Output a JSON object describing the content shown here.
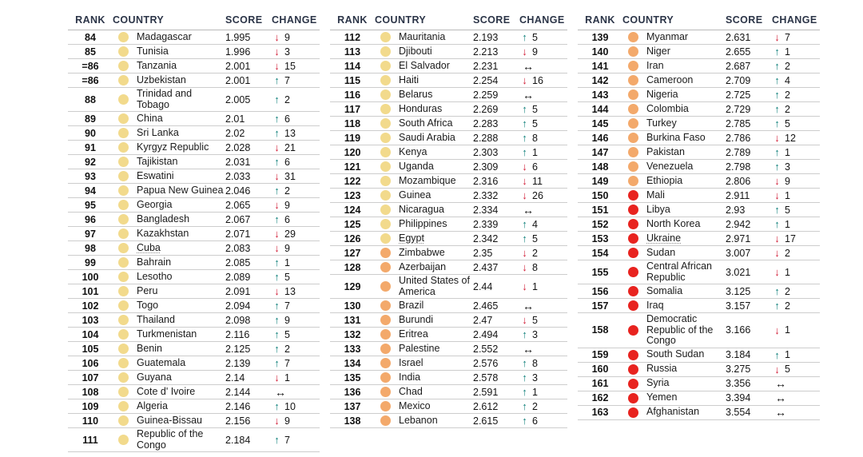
{
  "header": {
    "rank": "RANK",
    "country": "COUNTRY",
    "score": "SCORE",
    "change": "CHANGE"
  },
  "colors": {
    "tier_yellow": "#f2da8c",
    "tier_orange": "#f3a96b",
    "tier_red": "#e8231f",
    "arrow_up": "#15837e",
    "arrow_down": "#d2213a",
    "arrow_same": "#101010",
    "header_text": "#2b3447",
    "row_line": "#cdcdcd"
  },
  "glyphs": {
    "up": "↑",
    "down": "↓",
    "same": "↔"
  },
  "tables": [
    {
      "rows": [
        {
          "rank": "84",
          "country": "Madagascar",
          "tier": "yellow",
          "score": "1.995",
          "dir": "down",
          "delta": "9"
        },
        {
          "rank": "85",
          "country": "Tunisia",
          "tier": "yellow",
          "score": "1.996",
          "dir": "down",
          "delta": "3"
        },
        {
          "rank": "=86",
          "country": "Tanzania",
          "tier": "yellow",
          "score": "2.001",
          "dir": "down",
          "delta": "15"
        },
        {
          "rank": "=86",
          "country": "Uzbekistan",
          "tier": "yellow",
          "score": "2.001",
          "dir": "up",
          "delta": "7"
        },
        {
          "rank": "88",
          "country": "Trinidad and Tobago",
          "tier": "yellow",
          "score": "2.005",
          "dir": "up",
          "delta": "2"
        },
        {
          "rank": "89",
          "country": "China",
          "tier": "yellow",
          "score": "2.01",
          "dir": "up",
          "delta": "6"
        },
        {
          "rank": "90",
          "country": "Sri Lanka",
          "tier": "yellow",
          "score": "2.02",
          "dir": "up",
          "delta": "13"
        },
        {
          "rank": "91",
          "country": "Kyrgyz Republic",
          "tier": "yellow",
          "score": "2.028",
          "dir": "down",
          "delta": "21"
        },
        {
          "rank": "92",
          "country": "Tajikistan",
          "tier": "yellow",
          "score": "2.031",
          "dir": "up",
          "delta": "6"
        },
        {
          "rank": "93",
          "country": "Eswatini",
          "tier": "yellow",
          "score": "2.033",
          "dir": "down",
          "delta": "31"
        },
        {
          "rank": "94",
          "country": "Papua New Guinea",
          "tier": "yellow",
          "score": "2.046",
          "dir": "up",
          "delta": "2"
        },
        {
          "rank": "95",
          "country": "Georgia",
          "tier": "yellow",
          "score": "2.065",
          "dir": "down",
          "delta": "9"
        },
        {
          "rank": "96",
          "country": "Bangladesh",
          "tier": "yellow",
          "score": "2.067",
          "dir": "up",
          "delta": "6"
        },
        {
          "rank": "97",
          "country": "Kazakhstan",
          "tier": "yellow",
          "score": "2.071",
          "dir": "down",
          "delta": "29"
        },
        {
          "rank": "98",
          "country": "Cuba",
          "tier": "yellow",
          "score": "2.083",
          "dir": "down",
          "delta": "9",
          "underline": true
        },
        {
          "rank": "99",
          "country": "Bahrain",
          "tier": "yellow",
          "score": "2.085",
          "dir": "up",
          "delta": "1"
        },
        {
          "rank": "100",
          "country": "Lesotho",
          "tier": "yellow",
          "score": "2.089",
          "dir": "up",
          "delta": "5"
        },
        {
          "rank": "101",
          "country": "Peru",
          "tier": "yellow",
          "score": "2.091",
          "dir": "down",
          "delta": "13"
        },
        {
          "rank": "102",
          "country": "Togo",
          "tier": "yellow",
          "score": "2.094",
          "dir": "up",
          "delta": "7"
        },
        {
          "rank": "103",
          "country": "Thailand",
          "tier": "yellow",
          "score": "2.098",
          "dir": "up",
          "delta": "9"
        },
        {
          "rank": "104",
          "country": "Turkmenistan",
          "tier": "yellow",
          "score": "2.116",
          "dir": "up",
          "delta": "5"
        },
        {
          "rank": "105",
          "country": "Benin",
          "tier": "yellow",
          "score": "2.125",
          "dir": "up",
          "delta": "2"
        },
        {
          "rank": "106",
          "country": "Guatemala",
          "tier": "yellow",
          "score": "2.139",
          "dir": "up",
          "delta": "7"
        },
        {
          "rank": "107",
          "country": "Guyana",
          "tier": "yellow",
          "score": "2.14",
          "dir": "down",
          "delta": "1"
        },
        {
          "rank": "108",
          "country": "Cote d' Ivoire",
          "tier": "yellow",
          "score": "2.144",
          "dir": "same",
          "delta": ""
        },
        {
          "rank": "109",
          "country": "Algeria",
          "tier": "yellow",
          "score": "2.146",
          "dir": "up",
          "delta": "10"
        },
        {
          "rank": "110",
          "country": "Guinea-Bissau",
          "tier": "yellow",
          "score": "2.156",
          "dir": "down",
          "delta": "9"
        },
        {
          "rank": "111",
          "country": "Republic of the Congo",
          "tier": "yellow",
          "score": "2.184",
          "dir": "up",
          "delta": "7"
        }
      ]
    },
    {
      "rows": [
        {
          "rank": "112",
          "country": "Mauritania",
          "tier": "yellow",
          "score": "2.193",
          "dir": "up",
          "delta": "5"
        },
        {
          "rank": "113",
          "country": "Djibouti",
          "tier": "yellow",
          "score": "2.213",
          "dir": "down",
          "delta": "9"
        },
        {
          "rank": "114",
          "country": "El Salvador",
          "tier": "yellow",
          "score": "2.231",
          "dir": "same",
          "delta": ""
        },
        {
          "rank": "115",
          "country": "Haiti",
          "tier": "yellow",
          "score": "2.254",
          "dir": "down",
          "delta": "16"
        },
        {
          "rank": "116",
          "country": "Belarus",
          "tier": "yellow",
          "score": "2.259",
          "dir": "same",
          "delta": ""
        },
        {
          "rank": "117",
          "country": "Honduras",
          "tier": "yellow",
          "score": "2.269",
          "dir": "up",
          "delta": "5"
        },
        {
          "rank": "118",
          "country": "South Africa",
          "tier": "yellow",
          "score": "2.283",
          "dir": "up",
          "delta": "5"
        },
        {
          "rank": "119",
          "country": "Saudi Arabia",
          "tier": "yellow",
          "score": "2.288",
          "dir": "up",
          "delta": "8"
        },
        {
          "rank": "120",
          "country": "Kenya",
          "tier": "yellow",
          "score": "2.303",
          "dir": "up",
          "delta": "1"
        },
        {
          "rank": "121",
          "country": "Uganda",
          "tier": "yellow",
          "score": "2.309",
          "dir": "down",
          "delta": "6"
        },
        {
          "rank": "122",
          "country": "Mozambique",
          "tier": "yellow",
          "score": "2.316",
          "dir": "down",
          "delta": "11"
        },
        {
          "rank": "123",
          "country": "Guinea",
          "tier": "yellow",
          "score": "2.332",
          "dir": "down",
          "delta": "26"
        },
        {
          "rank": "124",
          "country": "Nicaragua",
          "tier": "yellow",
          "score": "2.334",
          "dir": "same",
          "delta": ""
        },
        {
          "rank": "125",
          "country": "Philippines",
          "tier": "yellow",
          "score": "2.339",
          "dir": "up",
          "delta": "4"
        },
        {
          "rank": "126",
          "country": "Egypt",
          "tier": "yellow",
          "score": "2.342",
          "dir": "up",
          "delta": "5",
          "underline": true
        },
        {
          "rank": "127",
          "country": "Zimbabwe",
          "tier": "orange",
          "score": "2.35",
          "dir": "down",
          "delta": "2"
        },
        {
          "rank": "128",
          "country": "Azerbaijan",
          "tier": "orange",
          "score": "2.437",
          "dir": "down",
          "delta": "8"
        },
        {
          "rank": "129",
          "country": "United States of America",
          "tier": "orange",
          "score": "2.44",
          "dir": "down",
          "delta": "1"
        },
        {
          "rank": "130",
          "country": "Brazil",
          "tier": "orange",
          "score": "2.465",
          "dir": "same",
          "delta": ""
        },
        {
          "rank": "131",
          "country": "Burundi",
          "tier": "orange",
          "score": "2.47",
          "dir": "down",
          "delta": "5"
        },
        {
          "rank": "132",
          "country": "Eritrea",
          "tier": "orange",
          "score": "2.494",
          "dir": "up",
          "delta": "3"
        },
        {
          "rank": "133",
          "country": "Palestine",
          "tier": "orange",
          "score": "2.552",
          "dir": "same",
          "delta": ""
        },
        {
          "rank": "134",
          "country": "Israel",
          "tier": "orange",
          "score": "2.576",
          "dir": "up",
          "delta": "8"
        },
        {
          "rank": "135",
          "country": "India",
          "tier": "orange",
          "score": "2.578",
          "dir": "up",
          "delta": "3"
        },
        {
          "rank": "136",
          "country": "Chad",
          "tier": "orange",
          "score": "2.591",
          "dir": "up",
          "delta": "1"
        },
        {
          "rank": "137",
          "country": "Mexico",
          "tier": "orange",
          "score": "2.612",
          "dir": "up",
          "delta": "2"
        },
        {
          "rank": "138",
          "country": "Lebanon",
          "tier": "orange",
          "score": "2.615",
          "dir": "up",
          "delta": "6"
        }
      ]
    },
    {
      "rows": [
        {
          "rank": "139",
          "country": "Myanmar",
          "tier": "orange",
          "score": "2.631",
          "dir": "down",
          "delta": "7"
        },
        {
          "rank": "140",
          "country": "Niger",
          "tier": "orange",
          "score": "2.655",
          "dir": "up",
          "delta": "1"
        },
        {
          "rank": "141",
          "country": "Iran",
          "tier": "orange",
          "score": "2.687",
          "dir": "up",
          "delta": "2"
        },
        {
          "rank": "142",
          "country": "Cameroon",
          "tier": "orange",
          "score": "2.709",
          "dir": "up",
          "delta": "4"
        },
        {
          "rank": "143",
          "country": "Nigeria",
          "tier": "orange",
          "score": "2.725",
          "dir": "up",
          "delta": "2"
        },
        {
          "rank": "144",
          "country": "Colombia",
          "tier": "orange",
          "score": "2.729",
          "dir": "up",
          "delta": "2"
        },
        {
          "rank": "145",
          "country": "Turkey",
          "tier": "orange",
          "score": "2.785",
          "dir": "up",
          "delta": "5"
        },
        {
          "rank": "146",
          "country": "Burkina Faso",
          "tier": "orange",
          "score": "2.786",
          "dir": "down",
          "delta": "12"
        },
        {
          "rank": "147",
          "country": "Pakistan",
          "tier": "orange",
          "score": "2.789",
          "dir": "up",
          "delta": "1"
        },
        {
          "rank": "148",
          "country": "Venezuela",
          "tier": "orange",
          "score": "2.798",
          "dir": "up",
          "delta": "3"
        },
        {
          "rank": "149",
          "country": "Ethiopia",
          "tier": "orange",
          "score": "2.806",
          "dir": "down",
          "delta": "9"
        },
        {
          "rank": "150",
          "country": "Mali",
          "tier": "red",
          "score": "2.911",
          "dir": "down",
          "delta": "1"
        },
        {
          "rank": "151",
          "country": "Libya",
          "tier": "red",
          "score": "2.93",
          "dir": "up",
          "delta": "5"
        },
        {
          "rank": "152",
          "country": "North Korea",
          "tier": "red",
          "score": "2.942",
          "dir": "up",
          "delta": "1"
        },
        {
          "rank": "153",
          "country": "Ukraine",
          "tier": "red",
          "score": "2.971",
          "dir": "down",
          "delta": "17",
          "underline": true
        },
        {
          "rank": "154",
          "country": "Sudan",
          "tier": "red",
          "score": "3.007",
          "dir": "down",
          "delta": "2"
        },
        {
          "rank": "155",
          "country": "Central African Republic",
          "tier": "red",
          "score": "3.021",
          "dir": "down",
          "delta": "1"
        },
        {
          "rank": "156",
          "country": "Somalia",
          "tier": "red",
          "score": "3.125",
          "dir": "up",
          "delta": "2"
        },
        {
          "rank": "157",
          "country": "Iraq",
          "tier": "red",
          "score": "3.157",
          "dir": "up",
          "delta": "2"
        },
        {
          "rank": "158",
          "country": "Democratic Republic of the Congo",
          "tier": "red",
          "score": "3.166",
          "dir": "down",
          "delta": "1"
        },
        {
          "rank": "159",
          "country": "South Sudan",
          "tier": "red",
          "score": "3.184",
          "dir": "up",
          "delta": "1"
        },
        {
          "rank": "160",
          "country": "Russia",
          "tier": "red",
          "score": "3.275",
          "dir": "down",
          "delta": "5"
        },
        {
          "rank": "161",
          "country": "Syria",
          "tier": "red",
          "score": "3.356",
          "dir": "same",
          "delta": ""
        },
        {
          "rank": "162",
          "country": "Yemen",
          "tier": "red",
          "score": "3.394",
          "dir": "same",
          "delta": ""
        },
        {
          "rank": "163",
          "country": "Afghanistan",
          "tier": "red",
          "score": "3.554",
          "dir": "same",
          "delta": ""
        }
      ]
    }
  ]
}
